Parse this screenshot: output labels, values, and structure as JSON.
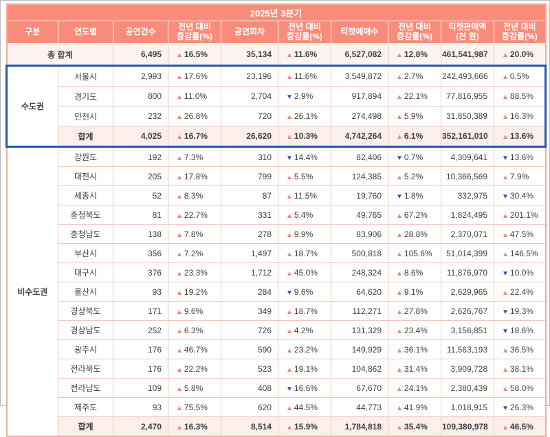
{
  "page": {
    "title": "2025년 3분기"
  },
  "colors": {
    "header_bg": "#f98b7a",
    "header_text": "#ffffff",
    "cell_border": "#f3c7bc",
    "table_border": "#f5ab9c",
    "total_row_bg": "#fdf3f0",
    "subtotal_row_bg": "#fcefeb",
    "up": "#f0857a",
    "down": "#2b58c0",
    "highlight_border": "#2356b4",
    "text": "#3f3f3f"
  },
  "icons": {
    "up_triangle": "▲",
    "down_triangle": "▼"
  },
  "chart_data": {
    "type": "table",
    "title": "2025년 3분기",
    "columns": [
      "구분",
      "연도별",
      "공연건수",
      "전년 대비\n증감률(%)",
      "공연회차",
      "전년 대비\n증감률(%)",
      "티켓예매수",
      "전년 대비\n증감률(%)",
      "티켓판매액\n(천 원)",
      "전년 대비\n증감률(%)"
    ],
    "grand_total": {
      "label": "총 합계",
      "cells": [
        "6,495",
        {
          "dir": "up",
          "val": "16.5%"
        },
        "35,134",
        {
          "dir": "up",
          "val": "11.6%"
        },
        "6,527,082",
        {
          "dir": "up",
          "val": "12.8%"
        },
        "461,541,987",
        {
          "dir": "up",
          "val": "20.0%"
        }
      ]
    },
    "groups": [
      {
        "name": "수도권",
        "highlighted": true,
        "rows": [
          {
            "region": "서울시",
            "cells": [
              "2,993",
              {
                "dir": "up",
                "val": "17.6%"
              },
              "23,196",
              {
                "dir": "up",
                "val": "11.6%"
              },
              "3,549,872",
              {
                "dir": "up",
                "val": "2.7%"
              },
              "242,493,666",
              {
                "dir": "up",
                "val": "0.5%"
              }
            ]
          },
          {
            "region": "경기도",
            "cells": [
              "800",
              {
                "dir": "up",
                "val": "11.0%"
              },
              "2,704",
              {
                "dir": "down",
                "val": "2.9%"
              },
              "917,894",
              {
                "dir": "up",
                "val": "22.1%"
              },
              "77,816,955",
              {
                "dir": "up",
                "val": "88.5%"
              }
            ]
          },
          {
            "region": "인천시",
            "cells": [
              "232",
              {
                "dir": "up",
                "val": "26.8%"
              },
              "720",
              {
                "dir": "up",
                "val": "26.1%"
              },
              "274,498",
              {
                "dir": "up",
                "val": "5.9%"
              },
              "31,850,389",
              {
                "dir": "up",
                "val": "16.3%"
              }
            ]
          }
        ],
        "total": {
          "label": "합계",
          "cells": [
            "4,025",
            {
              "dir": "up",
              "val": "16.7%"
            },
            "26,620",
            {
              "dir": "up",
              "val": "10.3%"
            },
            "4,742,264",
            {
              "dir": "up",
              "val": "6.1%"
            },
            "352,161,010",
            {
              "dir": "up",
              "val": "13.6%"
            }
          ]
        }
      },
      {
        "name": "비수도권",
        "highlighted": false,
        "rows": [
          {
            "region": "강원도",
            "cells": [
              "192",
              {
                "dir": "up",
                "val": "7.3%"
              },
              "310",
              {
                "dir": "down",
                "val": "14.4%"
              },
              "82,406",
              {
                "dir": "down",
                "val": "0.7%"
              },
              "4,309,641",
              {
                "dir": "down",
                "val": "13.6%"
              }
            ]
          },
          {
            "region": "대전시",
            "cells": [
              "205",
              {
                "dir": "up",
                "val": "17.8%"
              },
              "799",
              {
                "dir": "up",
                "val": "5.5%"
              },
              "124,385",
              {
                "dir": "up",
                "val": "5.2%"
              },
              "10,366,569",
              {
                "dir": "up",
                "val": "7.9%"
              }
            ]
          },
          {
            "region": "세종시",
            "cells": [
              "52",
              {
                "dir": "up",
                "val": "8.3%"
              },
              "87",
              {
                "dir": "up",
                "val": "11.5%"
              },
              "19,760",
              {
                "dir": "down",
                "val": "1.8%"
              },
              "332,975",
              {
                "dir": "down",
                "val": "30.4%"
              }
            ]
          },
          {
            "region": "충청북도",
            "cells": [
              "81",
              {
                "dir": "up",
                "val": "22.7%"
              },
              "331",
              {
                "dir": "up",
                "val": "5.4%"
              },
              "49,765",
              {
                "dir": "up",
                "val": "67.2%"
              },
              "1,824,495",
              {
                "dir": "up",
                "val": "201.1%"
              }
            ]
          },
          {
            "region": "충청남도",
            "cells": [
              "138",
              {
                "dir": "up",
                "val": "7.8%"
              },
              "278",
              {
                "dir": "up",
                "val": "9.9%"
              },
              "83,906",
              {
                "dir": "up",
                "val": "28.8%"
              },
              "2,370,071",
              {
                "dir": "up",
                "val": "47.5%"
              }
            ]
          },
          {
            "region": "부산시",
            "cells": [
              "356",
              {
                "dir": "up",
                "val": "7.2%"
              },
              "1,497",
              {
                "dir": "up",
                "val": "18.7%"
              },
              "500,818",
              {
                "dir": "up",
                "val": "105.6%"
              },
              "51,014,399",
              {
                "dir": "up",
                "val": "146.5%"
              }
            ]
          },
          {
            "region": "대구시",
            "cells": [
              "376",
              {
                "dir": "up",
                "val": "23.3%"
              },
              "1,712",
              {
                "dir": "up",
                "val": "45.0%"
              },
              "248,324",
              {
                "dir": "up",
                "val": "8.6%"
              },
              "11,876,970",
              {
                "dir": "down",
                "val": "10.0%"
              }
            ]
          },
          {
            "region": "울산시",
            "cells": [
              "93",
              {
                "dir": "up",
                "val": "19.2%"
              },
              "284",
              {
                "dir": "down",
                "val": "9.6%"
              },
              "64,620",
              {
                "dir": "up",
                "val": "9.1%"
              },
              "2,629,965",
              {
                "dir": "up",
                "val": "22.4%"
              }
            ]
          },
          {
            "region": "경상북도",
            "cells": [
              "171",
              {
                "dir": "up",
                "val": "9.6%"
              },
              "349",
              {
                "dir": "up",
                "val": "18.7%"
              },
              "112,271",
              {
                "dir": "up",
                "val": "27.8%"
              },
              "2,626,767",
              {
                "dir": "down",
                "val": "19.3%"
              }
            ]
          },
          {
            "region": "경상남도",
            "cells": [
              "252",
              {
                "dir": "up",
                "val": "6.3%"
              },
              "726",
              {
                "dir": "up",
                "val": "4.2%"
              },
              "131,329",
              {
                "dir": "up",
                "val": "23.4%"
              },
              "3,156,851",
              {
                "dir": "down",
                "val": "18.6%"
              }
            ]
          },
          {
            "region": "광주시",
            "cells": [
              "176",
              {
                "dir": "up",
                "val": "46.7%"
              },
              "590",
              {
                "dir": "up",
                "val": "23.2%"
              },
              "149,929",
              {
                "dir": "up",
                "val": "36.1%"
              },
              "11,563,193",
              {
                "dir": "up",
                "val": "36.5%"
              }
            ]
          },
          {
            "region": "전라북도",
            "cells": [
              "176",
              {
                "dir": "up",
                "val": "22.2%"
              },
              "523",
              {
                "dir": "up",
                "val": "19.1%"
              },
              "104,862",
              {
                "dir": "up",
                "val": "31.4%"
              },
              "3,909,728",
              {
                "dir": "up",
                "val": "38.1%"
              }
            ]
          },
          {
            "region": "전라남도",
            "cells": [
              "109",
              {
                "dir": "up",
                "val": "5.8%"
              },
              "408",
              {
                "dir": "down",
                "val": "16.6%"
              },
              "67,670",
              {
                "dir": "up",
                "val": "24.1%"
              },
              "2,380,439",
              {
                "dir": "up",
                "val": "58.0%"
              }
            ]
          },
          {
            "region": "제주도",
            "cells": [
              "93",
              {
                "dir": "up",
                "val": "75.5%"
              },
              "620",
              {
                "dir": "up",
                "val": "44.5%"
              },
              "44,773",
              {
                "dir": "up",
                "val": "41.9%"
              },
              "1,018,915",
              {
                "dir": "down",
                "val": "26.3%"
              }
            ]
          }
        ],
        "total": {
          "label": "합계",
          "cells": [
            "2,470",
            {
              "dir": "up",
              "val": "16.3%"
            },
            "8,514",
            {
              "dir": "up",
              "val": "15.9%"
            },
            "1,784,818",
            {
              "dir": "up",
              "val": "35.4%"
            },
            "109,380,978",
            {
              "dir": "up",
              "val": "46.5%"
            }
          ]
        }
      }
    ]
  }
}
